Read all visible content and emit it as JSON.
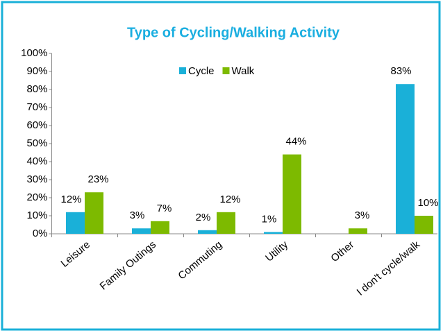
{
  "chart_data": {
    "type": "bar",
    "title": "Type of Cycling/Walking Activity",
    "categories": [
      "Leisure",
      "Family Outings",
      "Commuting",
      "Utility",
      "Other",
      "I don't cycle/walk"
    ],
    "series": [
      {
        "name": "Cycle",
        "color": "#1ab0d8",
        "values": [
          12,
          3,
          2,
          1,
          null,
          83
        ],
        "value_labels": [
          "12%",
          "3%",
          "2%",
          "1%",
          null,
          "83%"
        ]
      },
      {
        "name": "Walk",
        "color": "#7dba00",
        "values": [
          23,
          7,
          12,
          44,
          3,
          10
        ],
        "value_labels": [
          "23%",
          "7%",
          "12%",
          "44%",
          "3%",
          "10%"
        ]
      }
    ],
    "ylim": [
      0,
      100
    ],
    "yticks": [
      {
        "value": 0,
        "label": "0%"
      },
      {
        "value": 10,
        "label": "10%"
      },
      {
        "value": 20,
        "label": "20%"
      },
      {
        "value": 30,
        "label": "30%"
      },
      {
        "value": 40,
        "label": "40%"
      },
      {
        "value": 50,
        "label": "50%"
      },
      {
        "value": 60,
        "label": "60%"
      },
      {
        "value": 70,
        "label": "70%"
      },
      {
        "value": 80,
        "label": "80%"
      },
      {
        "value": 90,
        "label": "90%"
      },
      {
        "value": 100,
        "label": "100%"
      }
    ],
    "legend": "top"
  }
}
